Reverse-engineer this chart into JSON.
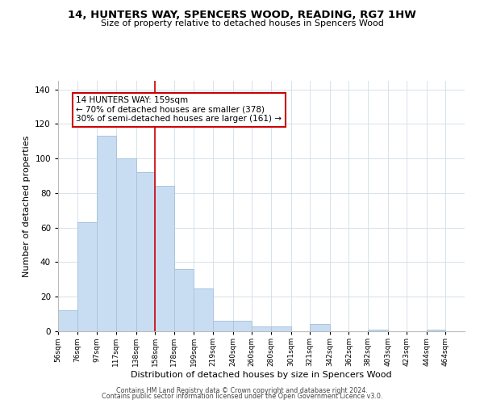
{
  "title": "14, HUNTERS WAY, SPENCERS WOOD, READING, RG7 1HW",
  "subtitle": "Size of property relative to detached houses in Spencers Wood",
  "xlabel": "Distribution of detached houses by size in Spencers Wood",
  "ylabel": "Number of detached properties",
  "bar_left_edges": [
    56,
    76,
    97,
    117,
    138,
    158,
    178,
    199,
    219,
    240,
    260,
    280,
    301,
    321,
    342,
    362,
    382,
    403,
    423,
    444
  ],
  "bar_heights": [
    12,
    63,
    113,
    100,
    92,
    84,
    36,
    25,
    6,
    6,
    3,
    3,
    0,
    4,
    0,
    0,
    1,
    0,
    0,
    1
  ],
  "bar_widths": [
    20,
    21,
    20,
    21,
    20,
    20,
    21,
    20,
    21,
    20,
    20,
    21,
    20,
    21,
    20,
    20,
    21,
    20,
    21,
    20
  ],
  "tick_labels": [
    "56sqm",
    "76sqm",
    "97sqm",
    "117sqm",
    "138sqm",
    "158sqm",
    "178sqm",
    "199sqm",
    "219sqm",
    "240sqm",
    "260sqm",
    "280sqm",
    "301sqm",
    "321sqm",
    "342sqm",
    "362sqm",
    "382sqm",
    "403sqm",
    "423sqm",
    "444sqm",
    "464sqm"
  ],
  "bar_color": "#c9ddf2",
  "bar_edgecolor": "#a8c4e0",
  "ylim": [
    0,
    145
  ],
  "yticks": [
    0,
    20,
    40,
    60,
    80,
    100,
    120,
    140
  ],
  "xlim_left": 56,
  "xlim_right": 484,
  "property_line_x": 158,
  "annotation_title": "14 HUNTERS WAY: 159sqm",
  "annotation_line1": "← 70% of detached houses are smaller (378)",
  "annotation_line2": "30% of semi-detached houses are larger (161) →",
  "annotation_box_facecolor": "#ffffff",
  "annotation_box_edgecolor": "#cc0000",
  "property_line_color": "#cc0000",
  "background_color": "#ffffff",
  "grid_color": "#d0dde8",
  "footer1": "Contains HM Land Registry data © Crown copyright and database right 2024.",
  "footer2": "Contains public sector information licensed under the Open Government Licence v3.0."
}
